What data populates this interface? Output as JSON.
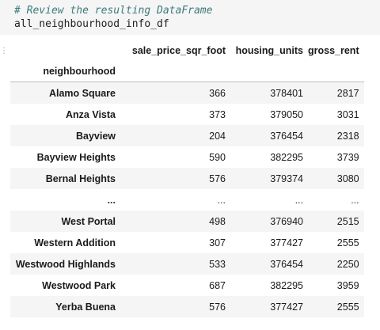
{
  "code": {
    "comment": "# Review the resulting DataFrame",
    "expression": "all_neighbourhood_info_df"
  },
  "handle": {
    "glyph": "⋮"
  },
  "dataframe": {
    "index_name": "neighbourhood",
    "columns": [
      "sale_price_sqr_foot",
      "housing_units",
      "gross_rent"
    ],
    "rows": [
      {
        "index": "Alamo Square",
        "values": [
          "366",
          "378401",
          "2817"
        ]
      },
      {
        "index": "Anza Vista",
        "values": [
          "373",
          "379050",
          "3031"
        ]
      },
      {
        "index": "Bayview",
        "values": [
          "204",
          "376454",
          "2318"
        ]
      },
      {
        "index": "Bayview Heights",
        "values": [
          "590",
          "382295",
          "3739"
        ]
      },
      {
        "index": "Bernal Heights",
        "values": [
          "576",
          "379374",
          "3080"
        ]
      },
      {
        "index": "...",
        "values": [
          "...",
          "...",
          "..."
        ]
      },
      {
        "index": "West Portal",
        "values": [
          "498",
          "376940",
          "2515"
        ]
      },
      {
        "index": "Western Addition",
        "values": [
          "307",
          "377427",
          "2555"
        ]
      },
      {
        "index": "Westwood Highlands",
        "values": [
          "533",
          "376454",
          "2250"
        ]
      },
      {
        "index": "Westwood Park",
        "values": [
          "687",
          "382295",
          "3959"
        ]
      },
      {
        "index": "Yerba Buena",
        "values": [
          "576",
          "377427",
          "2555"
        ]
      }
    ]
  }
}
